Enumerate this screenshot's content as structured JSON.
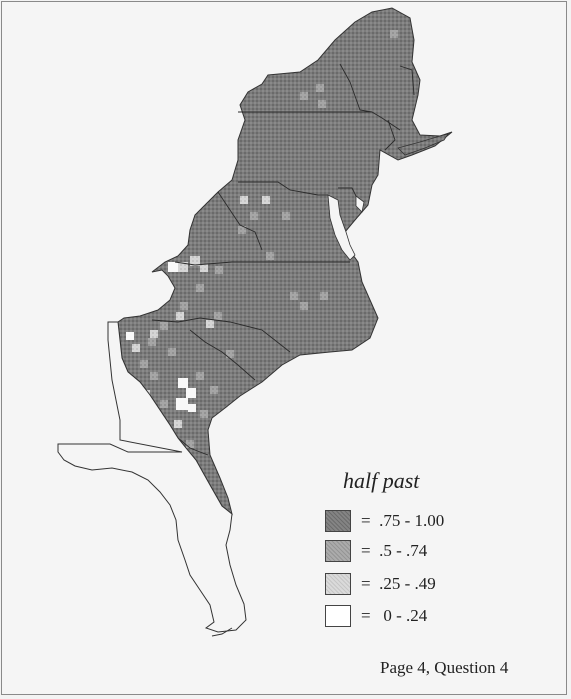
{
  "legend": {
    "title": "half past",
    "items": [
      {
        "label": "=  .75 - 1.00",
        "color": "#7a7a7a",
        "pattern": "dense"
      },
      {
        "label": "=  .5 - .74",
        "color": "#a2a2a2",
        "pattern": "medium"
      },
      {
        "label": "=  .25 - .49",
        "color": "#cfcfcf",
        "pattern": "light"
      },
      {
        "label": "=   0 - .24",
        "color": "#ffffff",
        "pattern": "none"
      }
    ]
  },
  "footer": "Page 4, Question 4"
}
